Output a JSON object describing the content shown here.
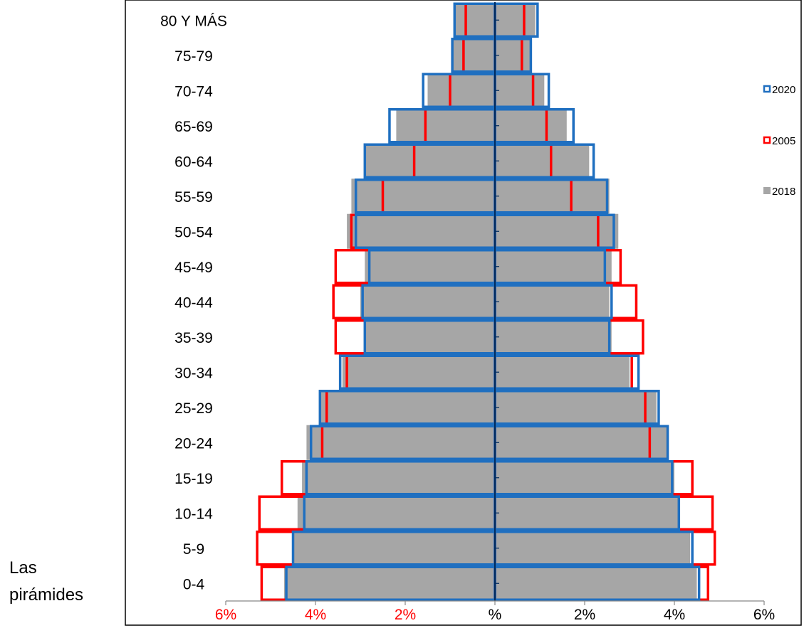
{
  "caption": {
    "line1": "Las",
    "line2": "pirámides"
  },
  "chart_data": {
    "type": "bar",
    "orientation": "horizontal",
    "diverging": true,
    "categories": [
      "0-4",
      "5-9",
      "10-14",
      "15-19",
      "20-24",
      "25-29",
      "30-34",
      "35-39",
      "40-44",
      "45-49",
      "50-54",
      "55-59",
      "60-64",
      "65-69",
      "70-74",
      "75-79",
      "80 Y MÁS"
    ],
    "x_ticks": [
      {
        "label": "6%",
        "value": -6,
        "color": "#ff0000"
      },
      {
        "label": "4%",
        "value": -4,
        "color": "#ff0000"
      },
      {
        "label": "2%",
        "value": -2,
        "color": "#ff0000"
      },
      {
        "label": "%",
        "value": 0,
        "color": "#000000"
      },
      {
        "label": "2%",
        "value": 2,
        "color": "#000000"
      },
      {
        "label": "4%",
        "value": 4,
        "color": "#000000"
      },
      {
        "label": "6%",
        "value": 6,
        "color": "#000000"
      }
    ],
    "xlim": [
      -6,
      6
    ],
    "legend_position": "right",
    "series": [
      {
        "name": "2018",
        "style": "filled",
        "color": "#a6a6a6",
        "left": [
          4.7,
          4.5,
          4.4,
          4.3,
          4.2,
          3.9,
          3.4,
          2.9,
          3.0,
          2.9,
          3.3,
          3.2,
          2.9,
          2.2,
          1.5,
          0.95,
          0.9
        ],
        "right": [
          4.5,
          4.35,
          4.1,
          4.0,
          3.85,
          3.6,
          3.0,
          2.6,
          2.55,
          2.6,
          2.75,
          2.55,
          2.1,
          1.6,
          1.1,
          0.8,
          0.9
        ]
      },
      {
        "name": "2005",
        "style": "outline",
        "color": "#ff0000",
        "left": [
          5.2,
          5.3,
          5.25,
          4.75,
          3.85,
          3.75,
          3.3,
          3.55,
          3.6,
          3.55,
          3.2,
          2.5,
          1.8,
          1.55,
          1.0,
          0.7,
          0.65
        ],
        "right": [
          4.75,
          4.9,
          4.85,
          4.4,
          3.45,
          3.35,
          3.05,
          3.3,
          3.15,
          2.8,
          2.3,
          1.7,
          1.25,
          1.15,
          0.85,
          0.6,
          0.65
        ]
      },
      {
        "name": "2020",
        "style": "outline",
        "color": "#1f6fc0",
        "left": [
          4.65,
          4.5,
          4.25,
          4.2,
          4.1,
          3.9,
          3.45,
          2.9,
          2.95,
          2.8,
          3.1,
          3.1,
          2.9,
          2.35,
          1.6,
          0.95,
          0.9
        ],
        "right": [
          4.55,
          4.4,
          4.1,
          3.95,
          3.85,
          3.65,
          3.2,
          2.55,
          2.6,
          2.45,
          2.65,
          2.5,
          2.2,
          1.75,
          1.2,
          0.8,
          0.95
        ]
      }
    ],
    "legend": [
      {
        "label": "2020",
        "color": "#1f6fc0",
        "style": "outline"
      },
      {
        "label": "2005",
        "color": "#ff0000",
        "style": "outline"
      },
      {
        "label": "2018",
        "color": "#a6a6a6",
        "style": "filled"
      }
    ]
  }
}
